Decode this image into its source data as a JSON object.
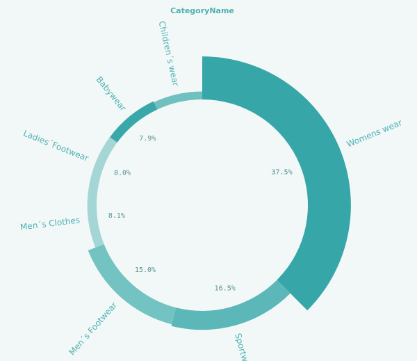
{
  "chart_data": {
    "type": "radial-pie",
    "title": "CategoryName",
    "categories": [
      "Womens wear",
      "Sportwear",
      "Men´s Footwear",
      "Men´s Clothes",
      "Ladies´Footwear",
      "Babywear",
      "Children´s wear"
    ],
    "values": [
      37.5,
      16.5,
      15.0,
      8.1,
      8.0,
      7.9,
      7.0
    ],
    "value_labels": [
      "37.5%",
      "16.5%",
      "15.0%",
      "8.1%",
      "8.0%",
      "7.9%",
      null
    ],
    "colors": [
      "#36a6a8",
      "#5cb8b8",
      "#73c3c2",
      "#a4d6d6",
      "#a4d6d6",
      "#3aa8aa",
      "#6fc0bf"
    ]
  }
}
